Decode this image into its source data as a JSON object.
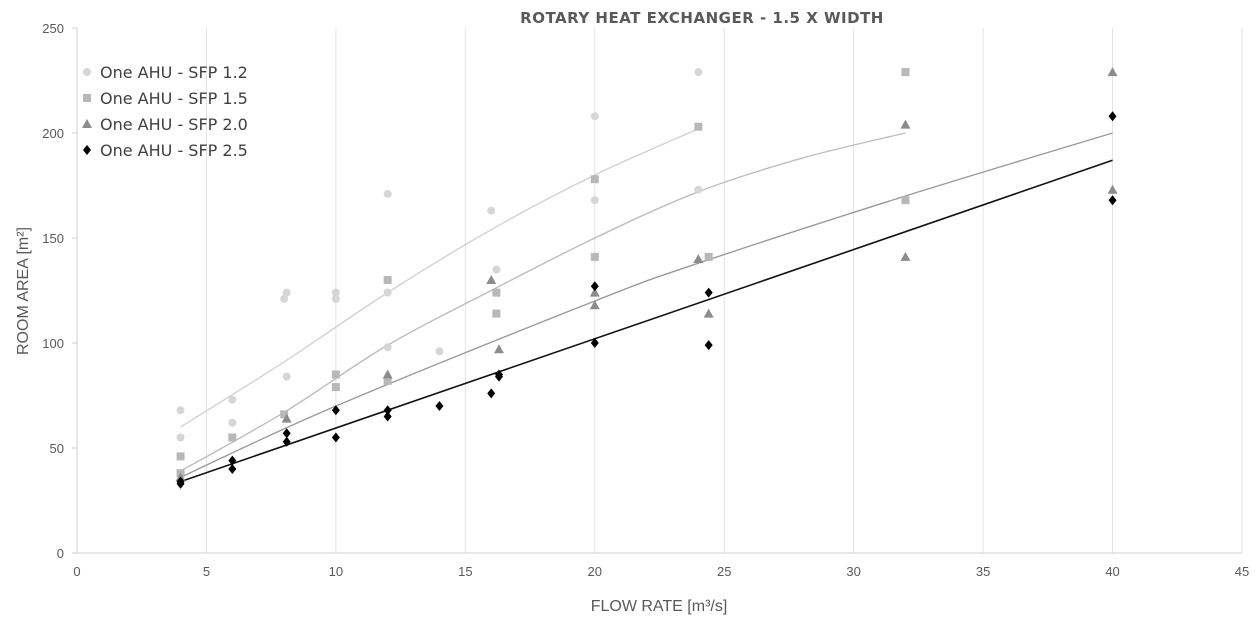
{
  "chart_data": {
    "type": "scatter",
    "title": "ROTARY HEAT EXCHANGER - 1.5 X WIDTH",
    "xlabel": "FLOW RATE [m³/s]",
    "ylabel": "ROOM AREA [m²]",
    "xlim": [
      0,
      45
    ],
    "ylim": [
      0,
      250
    ],
    "xticks": [
      0,
      5,
      10,
      15,
      20,
      25,
      30,
      35,
      40,
      45
    ],
    "yticks": [
      0,
      50,
      100,
      150,
      200,
      250
    ],
    "grid": "vertical",
    "legend_position": "top-left",
    "series": [
      {
        "name": "One AHU - SFP 1.2",
        "marker": "circle",
        "color": "#d6d6d6",
        "points": [
          [
            4,
            68
          ],
          [
            4,
            55
          ],
          [
            6,
            73
          ],
          [
            6,
            62
          ],
          [
            8,
            121
          ],
          [
            8.1,
            124
          ],
          [
            8.1,
            84
          ],
          [
            10,
            124
          ],
          [
            10,
            121
          ],
          [
            12,
            171
          ],
          [
            12,
            124
          ],
          [
            12,
            98
          ],
          [
            14,
            96
          ],
          [
            16,
            163
          ],
          [
            16.2,
            135
          ],
          [
            20,
            208
          ],
          [
            20,
            168
          ],
          [
            24,
            229
          ],
          [
            24,
            173
          ]
        ],
        "trend": [
          [
            4,
            60
          ],
          [
            8,
            91
          ],
          [
            12,
            124
          ],
          [
            16,
            154
          ],
          [
            20,
            180
          ],
          [
            24,
            202
          ]
        ]
      },
      {
        "name": "One AHU - SFP 1.5",
        "marker": "square",
        "color": "#b8b8b8",
        "points": [
          [
            4,
            46
          ],
          [
            4,
            38
          ],
          [
            6,
            55
          ],
          [
            8,
            66
          ],
          [
            10,
            85
          ],
          [
            10,
            79
          ],
          [
            12,
            130
          ],
          [
            12,
            82
          ],
          [
            16.2,
            124
          ],
          [
            16.2,
            114
          ],
          [
            20,
            178
          ],
          [
            20,
            141
          ],
          [
            24,
            203
          ],
          [
            24.4,
            141
          ],
          [
            32,
            229
          ],
          [
            32,
            168
          ]
        ],
        "trend": [
          [
            4,
            39
          ],
          [
            8,
            67
          ],
          [
            12,
            99
          ],
          [
            16,
            125
          ],
          [
            20,
            150
          ],
          [
            24,
            172
          ],
          [
            28,
            188
          ],
          [
            32,
            200
          ]
        ]
      },
      {
        "name": "One AHU - SFP 2.0",
        "marker": "triangle",
        "color": "#8c8c8c",
        "points": [
          [
            4,
            36
          ],
          [
            8.1,
            64
          ],
          [
            12,
            85
          ],
          [
            16,
            130
          ],
          [
            16.3,
            97
          ],
          [
            20,
            118
          ],
          [
            20,
            124
          ],
          [
            24,
            140
          ],
          [
            24.4,
            114
          ],
          [
            32,
            204
          ],
          [
            32,
            141
          ],
          [
            40,
            229
          ],
          [
            40,
            173
          ]
        ],
        "trend": [
          [
            4,
            36
          ],
          [
            10,
            70
          ],
          [
            20,
            120
          ],
          [
            24,
            138
          ],
          [
            32,
            170
          ],
          [
            40,
            200
          ]
        ]
      },
      {
        "name": "One AHU - SFP 2.5",
        "marker": "diamond",
        "color": "#000000",
        "points": [
          [
            4,
            34
          ],
          [
            4,
            33
          ],
          [
            6,
            44
          ],
          [
            6,
            40
          ],
          [
            8.1,
            57
          ],
          [
            8.1,
            53
          ],
          [
            10,
            68
          ],
          [
            10,
            55
          ],
          [
            12,
            68
          ],
          [
            12,
            65
          ],
          [
            14,
            70
          ],
          [
            16,
            76
          ],
          [
            16.3,
            85
          ],
          [
            16.3,
            84
          ],
          [
            20,
            127
          ],
          [
            20,
            100
          ],
          [
            24.4,
            124
          ],
          [
            24.4,
            99
          ],
          [
            40,
            208
          ],
          [
            40,
            168
          ]
        ],
        "trend": [
          [
            4,
            34
          ],
          [
            40,
            187
          ]
        ]
      }
    ]
  }
}
